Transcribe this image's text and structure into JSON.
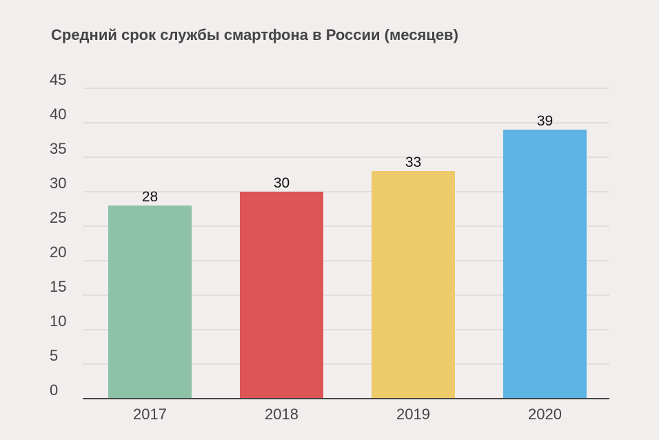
{
  "chart_data": {
    "type": "bar",
    "title": "Средний срок службы смартфона в России (месяцев)",
    "categories": [
      "2017",
      "2018",
      "2019",
      "2020"
    ],
    "values": [
      28,
      30,
      33,
      39
    ],
    "colors": [
      "#8ec2a8",
      "#de5557",
      "#eecb6a",
      "#5db3e3"
    ],
    "ylim": [
      0,
      45
    ],
    "yticks": [
      0,
      5,
      10,
      15,
      20,
      25,
      30,
      35,
      40,
      45
    ],
    "grid": true,
    "xlabel": "",
    "ylabel": ""
  }
}
